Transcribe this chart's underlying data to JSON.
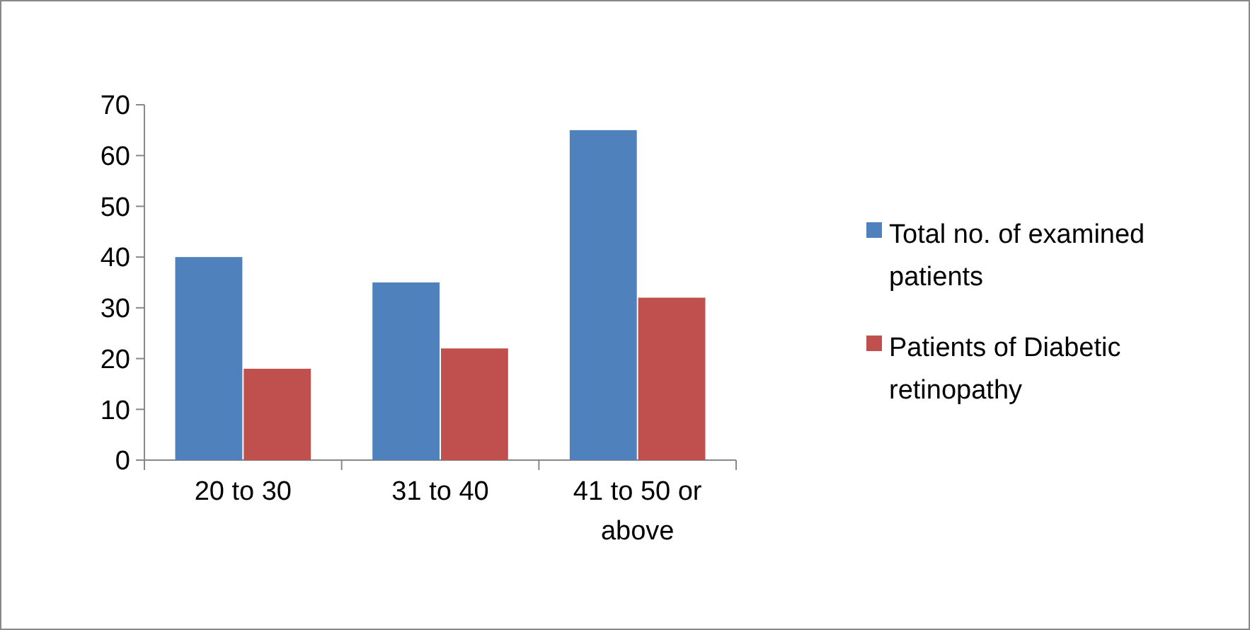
{
  "chart_data": {
    "type": "bar",
    "categories": [
      "20 to 30",
      "31 to 40",
      "41 to 50 or above"
    ],
    "series": [
      {
        "name": "Total no. of examined patients",
        "color": "#4f81bd",
        "values": [
          40,
          35,
          65
        ]
      },
      {
        "name": "Patients of Diabetic retinopathy",
        "color": "#c0504d",
        "values": [
          18,
          22,
          32
        ]
      }
    ],
    "ylim": [
      0,
      70
    ],
    "yticks": [
      0,
      10,
      20,
      30,
      40,
      50,
      60,
      70
    ],
    "grid": false,
    "legend": "right"
  }
}
